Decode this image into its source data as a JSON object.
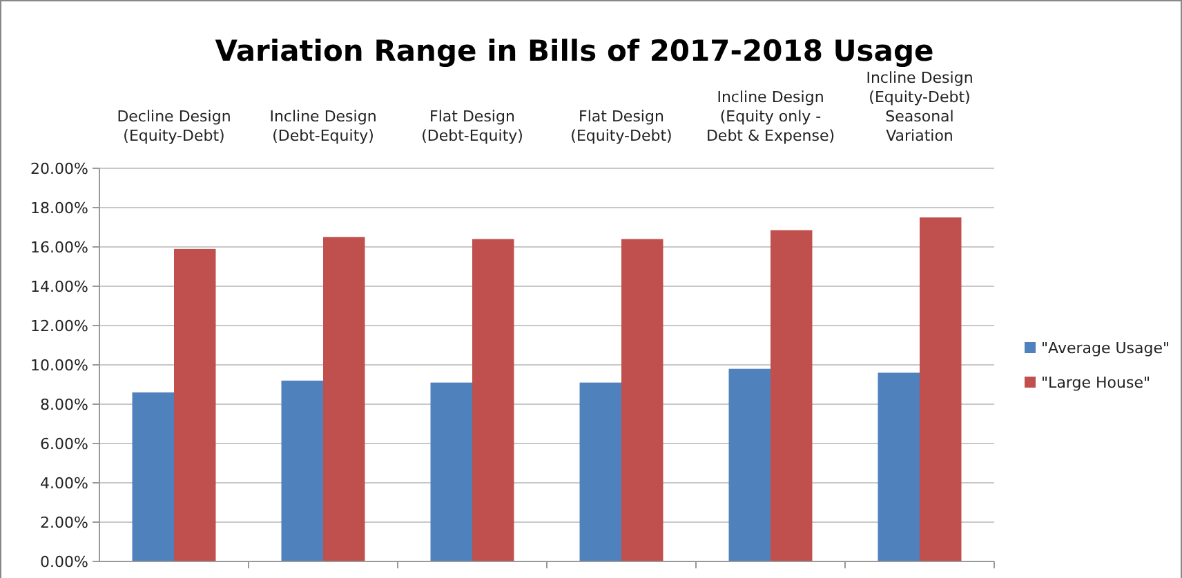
{
  "chart_data": {
    "type": "bar",
    "title": "Variation Range in Bills of 2017-2018 Usage",
    "categories": [
      "Decline Design (Equity-Debt)",
      "Incline Design (Debt-Equity)",
      "Flat Design (Debt-Equity)",
      "Flat Design (Equity-Debt)",
      "Incline Design (Equity only - Debt & Expense)",
      "Incline Design (Equity-Debt) Seasonal Variation"
    ],
    "series": [
      {
        "name": "\"Average Usage\"",
        "color": "#4f81bd",
        "values": [
          8.6,
          9.2,
          9.1,
          9.1,
          9.8,
          9.6
        ]
      },
      {
        "name": "\"Large House\"",
        "color": "#c0504d",
        "values": [
          15.9,
          16.5,
          16.4,
          16.4,
          16.85,
          17.5
        ]
      }
    ],
    "ylim": [
      0,
      20
    ],
    "yticks": [
      {
        "value": 0,
        "label": "0.00%"
      },
      {
        "value": 2,
        "label": "2.00%"
      },
      {
        "value": 4,
        "label": "4.00%"
      },
      {
        "value": 6,
        "label": "6.00%"
      },
      {
        "value": 8,
        "label": "8.00%"
      },
      {
        "value": 10,
        "label": "10.00%"
      },
      {
        "value": 12,
        "label": "12.00%"
      },
      {
        "value": 14,
        "label": "14.00%"
      },
      {
        "value": 16,
        "label": "16.00%"
      },
      {
        "value": 18,
        "label": "18.00%"
      },
      {
        "value": 20,
        "label": "20.00%"
      }
    ],
    "grid": "y",
    "legend": "right"
  }
}
